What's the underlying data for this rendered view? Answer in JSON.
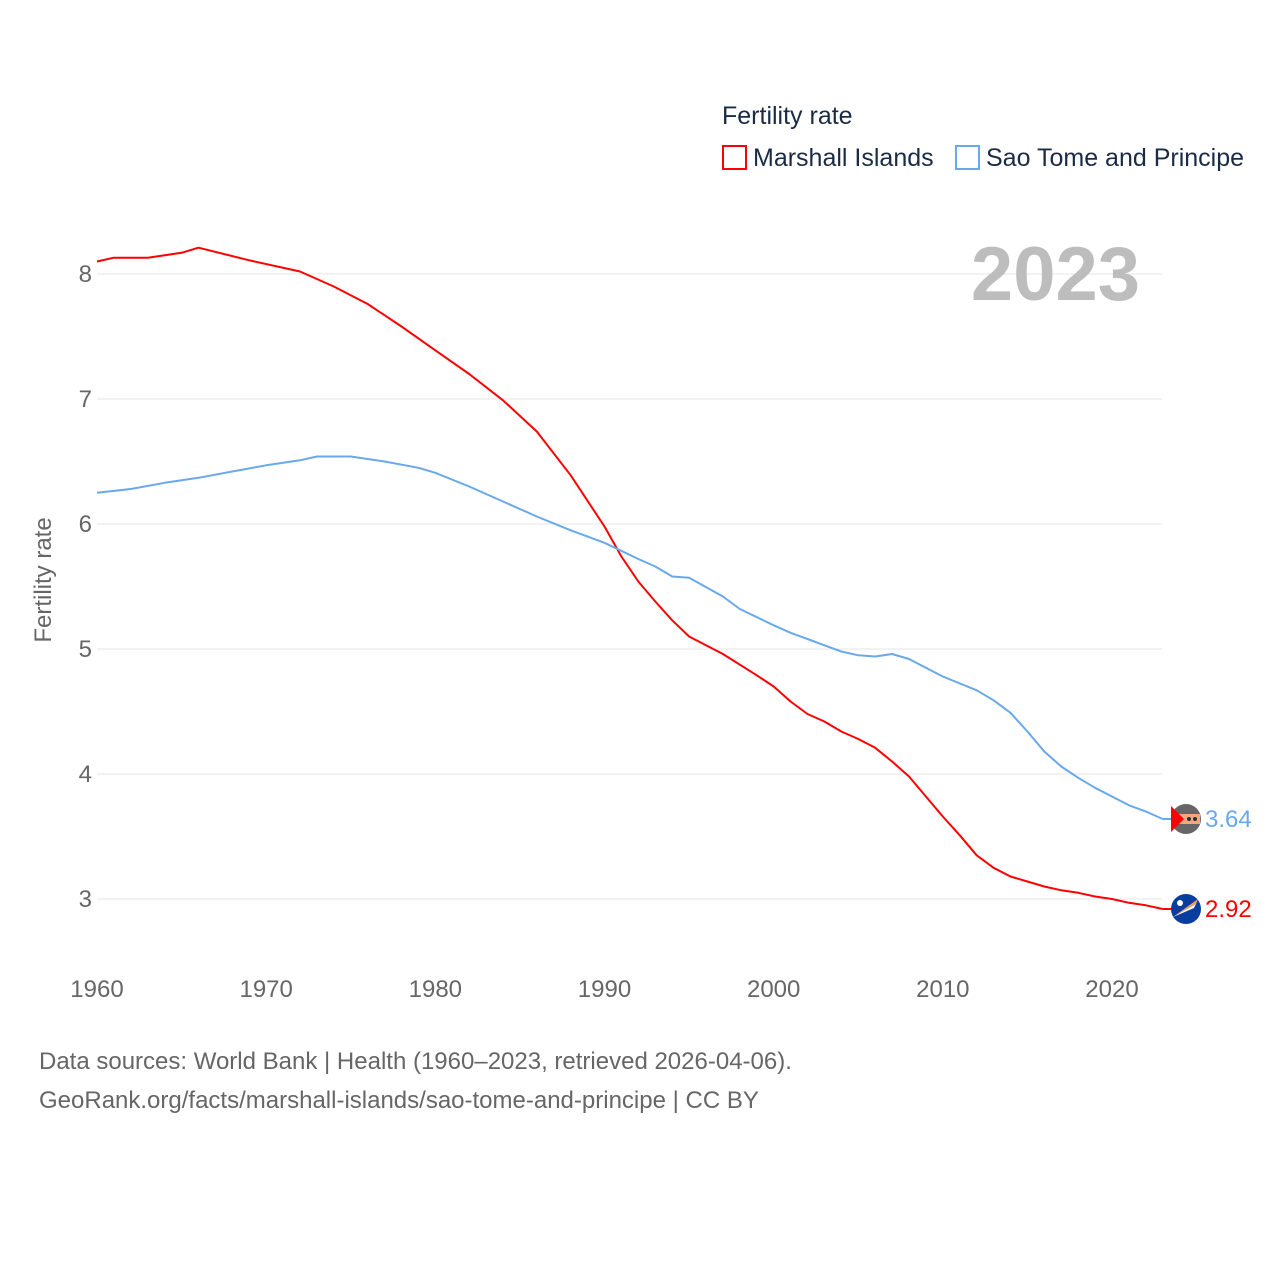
{
  "chart_data": {
    "type": "line",
    "title": "Fertility rate",
    "year_label": "2023",
    "ylabel": "Fertility rate",
    "xlabel": "",
    "xlim": [
      1960,
      2023
    ],
    "ylim": [
      2.5,
      8.4
    ],
    "x_ticks": [
      1960,
      1970,
      1980,
      1990,
      2000,
      2010,
      2020
    ],
    "y_ticks": [
      3,
      4,
      5,
      6,
      7,
      8
    ],
    "grid": true,
    "legend_position": "top-right",
    "series": [
      {
        "name": "Marshall Islands",
        "color": "#ff0000",
        "end_label": "2.92",
        "flag_icon": "marshall-islands-flag",
        "points": [
          [
            1960,
            8.1
          ],
          [
            1961,
            8.13
          ],
          [
            1963,
            8.13
          ],
          [
            1965,
            8.17
          ],
          [
            1966,
            8.21
          ],
          [
            1969,
            8.11
          ],
          [
            1972,
            8.02
          ],
          [
            1974,
            7.9
          ],
          [
            1976,
            7.76
          ],
          [
            1978,
            7.58
          ],
          [
            1980,
            7.39
          ],
          [
            1982,
            7.2
          ],
          [
            1984,
            6.99
          ],
          [
            1986,
            6.74
          ],
          [
            1988,
            6.39
          ],
          [
            1990,
            5.98
          ],
          [
            1991,
            5.74
          ],
          [
            1992,
            5.54
          ],
          [
            1993,
            5.38
          ],
          [
            1994,
            5.23
          ],
          [
            1995,
            5.1
          ],
          [
            1997,
            4.96
          ],
          [
            1999,
            4.79
          ],
          [
            2000,
            4.7
          ],
          [
            2001,
            4.58
          ],
          [
            2002,
            4.48
          ],
          [
            2003,
            4.42
          ],
          [
            2004,
            4.34
          ],
          [
            2005,
            4.28
          ],
          [
            2006,
            4.21
          ],
          [
            2007,
            4.1
          ],
          [
            2008,
            3.98
          ],
          [
            2009,
            3.82
          ],
          [
            2010,
            3.66
          ],
          [
            2011,
            3.51
          ],
          [
            2012,
            3.35
          ],
          [
            2013,
            3.25
          ],
          [
            2014,
            3.18
          ],
          [
            2015,
            3.14
          ],
          [
            2016,
            3.1
          ],
          [
            2017,
            3.07
          ],
          [
            2018,
            3.05
          ],
          [
            2019,
            3.02
          ],
          [
            2020,
            3.0
          ],
          [
            2021,
            2.97
          ],
          [
            2022,
            2.95
          ],
          [
            2023,
            2.92
          ]
        ]
      },
      {
        "name": "Sao Tome and Principe",
        "color": "#6aa8ec",
        "end_label": "3.64",
        "flag_icon": "sao-tome-and-principe-flag",
        "points": [
          [
            1960,
            6.25
          ],
          [
            1962,
            6.28
          ],
          [
            1964,
            6.33
          ],
          [
            1966,
            6.37
          ],
          [
            1968,
            6.42
          ],
          [
            1970,
            6.47
          ],
          [
            1972,
            6.51
          ],
          [
            1973,
            6.54
          ],
          [
            1975,
            6.54
          ],
          [
            1977,
            6.5
          ],
          [
            1979,
            6.45
          ],
          [
            1980,
            6.41
          ],
          [
            1982,
            6.3
          ],
          [
            1984,
            6.18
          ],
          [
            1986,
            6.06
          ],
          [
            1988,
            5.95
          ],
          [
            1990,
            5.85
          ],
          [
            1992,
            5.72
          ],
          [
            1993,
            5.66
          ],
          [
            1994,
            5.58
          ],
          [
            1995,
            5.57
          ],
          [
            1997,
            5.42
          ],
          [
            1998,
            5.32
          ],
          [
            2000,
            5.19
          ],
          [
            2001,
            5.13
          ],
          [
            2002,
            5.08
          ],
          [
            2003,
            5.03
          ],
          [
            2004,
            4.98
          ],
          [
            2005,
            4.95
          ],
          [
            2006,
            4.94
          ],
          [
            2007,
            4.96
          ],
          [
            2008,
            4.92
          ],
          [
            2010,
            4.78
          ],
          [
            2012,
            4.67
          ],
          [
            2013,
            4.59
          ],
          [
            2014,
            4.49
          ],
          [
            2015,
            4.34
          ],
          [
            2016,
            4.18
          ],
          [
            2017,
            4.06
          ],
          [
            2018,
            3.97
          ],
          [
            2019,
            3.89
          ],
          [
            2020,
            3.82
          ],
          [
            2021,
            3.75
          ],
          [
            2022,
            3.7
          ],
          [
            2023,
            3.64
          ]
        ]
      }
    ]
  },
  "footer": {
    "line1": "Data sources: World Bank | Health (1960–2023, retrieved 2026-04-06).",
    "line2": "GeoRank.org/facts/marshall-islands/sao-tome-and-principe | CC BY"
  }
}
